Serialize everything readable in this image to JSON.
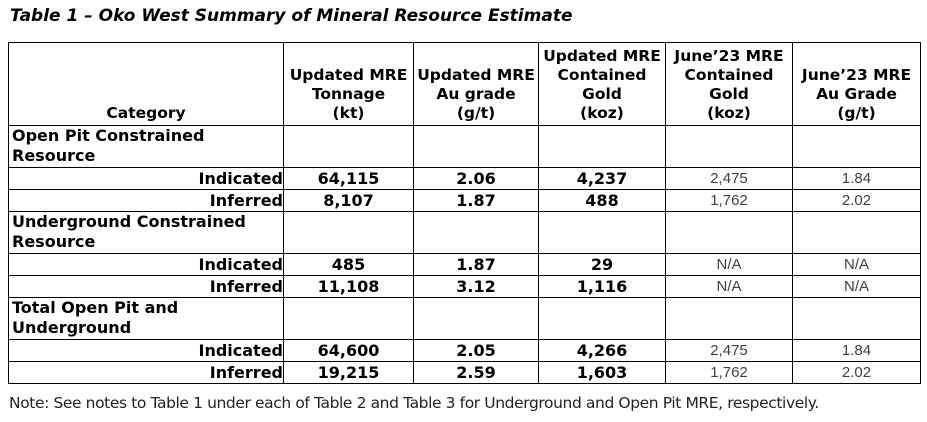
{
  "title": "Table 1 – Oko West Summary of Mineral Resource Estimate",
  "note": "Note: See notes to Table 1 under each of Table 2 and Table 3 for Underground and Open Pit MRE, respectively.",
  "table": {
    "columns": [
      "Category",
      "Updated MRE\nTonnage\n(kt)",
      "Updated MRE\nAu grade\n(g/t)",
      "Updated MRE\nContained\nGold\n(koz)",
      "June’23 MRE\nContained\nGold\n(koz)",
      "June’23 MRE\nAu Grade\n(g/t)"
    ],
    "sections": [
      {
        "name": "Open Pit Constrained\nResource",
        "rows": [
          {
            "category": "Indicated",
            "values": [
              "64,115",
              "2.06",
              "4,237",
              "2,475",
              "1.84"
            ]
          },
          {
            "category": "Inferred",
            "values": [
              "8,107",
              "1.87",
              "488",
              "1,762",
              "2.02"
            ]
          }
        ]
      },
      {
        "name": "Underground Constrained\nResource",
        "rows": [
          {
            "category": "Indicated",
            "values": [
              "485",
              "1.87",
              "29",
              "N/A",
              "N/A"
            ]
          },
          {
            "category": "Inferred",
            "values": [
              "11,108",
              "3.12",
              "1,116",
              "N/A",
              "N/A"
            ]
          }
        ]
      },
      {
        "name": "Total Open Pit and\nUnderground",
        "rows": [
          {
            "category": "Indicated",
            "values": [
              "64,600",
              "2.05",
              "4,266",
              "2,475",
              "1.84"
            ]
          },
          {
            "category": "Inferred",
            "values": [
              "19,215",
              "2.59",
              "1,603",
              "1,762",
              "2.02"
            ]
          }
        ]
      }
    ]
  }
}
